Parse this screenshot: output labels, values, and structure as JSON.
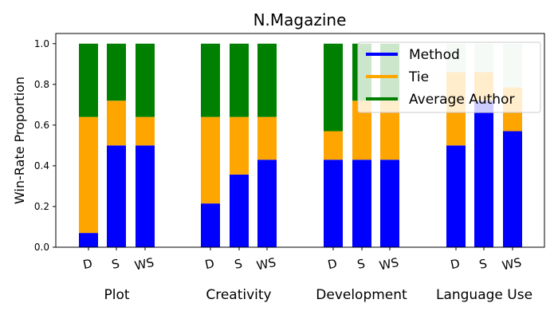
{
  "chart_data": {
    "type": "bar",
    "stacked": true,
    "title": "N.Magazine",
    "ylabel": "Win-Rate Proportion",
    "xlabel": "",
    "ylim": [
      0,
      1.05
    ],
    "yticks": [
      "0.0",
      "0.2",
      "0.4",
      "0.6",
      "0.8",
      "1.0"
    ],
    "groups": [
      {
        "name": "Plot",
        "categories": [
          "D",
          "S",
          "WS"
        ],
        "method": [
          0.07,
          0.5,
          0.5
        ],
        "tie": [
          0.57,
          0.22,
          0.14
        ],
        "author": [
          0.36,
          0.28,
          0.36
        ],
        "faded_author": false
      },
      {
        "name": "Creativity",
        "categories": [
          "D",
          "S",
          "WS"
        ],
        "method": [
          0.215,
          0.357,
          0.43
        ],
        "tie": [
          0.425,
          0.283,
          0.21
        ],
        "author": [
          0.36,
          0.36,
          0.36
        ],
        "faded_author": false
      },
      {
        "name": "Development",
        "categories": [
          "D",
          "S",
          "WS"
        ],
        "method": [
          0.43,
          0.43,
          0.43
        ],
        "tie": [
          0.14,
          0.29,
          0.29
        ],
        "author": [
          0.43,
          0.28,
          0.28
        ],
        "faded_author": false
      },
      {
        "name": "Language Use",
        "categories": [
          "D",
          "S",
          "WS"
        ],
        "method": [
          0.5,
          0.72,
          0.57
        ],
        "tie": [
          0.36,
          0.14,
          0.215
        ],
        "author": [
          0.14,
          0.14,
          0.215
        ],
        "faded_author": true
      }
    ],
    "legend": {
      "position": "top-right",
      "entries": [
        {
          "name": "Method",
          "color": "#0000ff"
        },
        {
          "name": "Tie",
          "color": "#ffa500"
        },
        {
          "name": "Average Author",
          "color": "#008000"
        }
      ]
    },
    "colors": {
      "method": "#0000ff",
      "tie": "#ffa500",
      "author": "#008000",
      "author_faded": "#cfe6cf",
      "tie_faded": "#ffe8c6"
    },
    "grid": false
  }
}
